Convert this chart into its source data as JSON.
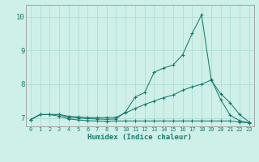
{
  "xlabel": "Humidex (Indice chaleur)",
  "bg_color": "#cef0e8",
  "grid_color": "#b0ddd5",
  "line_color": "#1a7a6e",
  "xlim": [
    -0.5,
    23.5
  ],
  "ylim": [
    6.75,
    10.35
  ],
  "xticks": [
    0,
    1,
    2,
    3,
    4,
    5,
    6,
    7,
    8,
    9,
    10,
    11,
    12,
    13,
    14,
    15,
    16,
    17,
    18,
    19,
    20,
    21,
    22,
    23
  ],
  "yticks": [
    7,
    8,
    9,
    10
  ],
  "spike_x": [
    0,
    1,
    2,
    3,
    4,
    5,
    6,
    7,
    8,
    9,
    10,
    11,
    12,
    13,
    14,
    15,
    16,
    17,
    18,
    19,
    20,
    21,
    22,
    23
  ],
  "spike_y": [
    6.95,
    7.1,
    7.1,
    7.1,
    7.02,
    7.0,
    6.98,
    6.97,
    6.96,
    6.97,
    7.18,
    7.62,
    7.75,
    8.35,
    8.48,
    8.57,
    8.87,
    9.5,
    10.05,
    8.15,
    7.55,
    7.08,
    6.92,
    6.85
  ],
  "medium_x": [
    0,
    1,
    2,
    3,
    4,
    5,
    6,
    7,
    8,
    9,
    10,
    11,
    12,
    13,
    14,
    15,
    16,
    17,
    18,
    19,
    20,
    21,
    22,
    23
  ],
  "medium_y": [
    6.95,
    7.1,
    7.1,
    7.1,
    7.05,
    7.03,
    7.01,
    7.01,
    7.01,
    7.02,
    7.15,
    7.28,
    7.4,
    7.5,
    7.6,
    7.68,
    7.82,
    7.92,
    8.0,
    8.12,
    7.72,
    7.45,
    7.1,
    6.88
  ],
  "flat_x": [
    0,
    1,
    2,
    3,
    4,
    5,
    6,
    7,
    8,
    9,
    10,
    11,
    12,
    13,
    14,
    15,
    16,
    17,
    18,
    19,
    20,
    21,
    22,
    23
  ],
  "flat_y": [
    6.95,
    7.1,
    7.1,
    7.05,
    6.97,
    6.94,
    6.92,
    6.91,
    6.9,
    6.91,
    6.91,
    6.91,
    6.91,
    6.91,
    6.91,
    6.91,
    6.91,
    6.91,
    6.91,
    6.91,
    6.91,
    6.91,
    6.88,
    6.85
  ]
}
